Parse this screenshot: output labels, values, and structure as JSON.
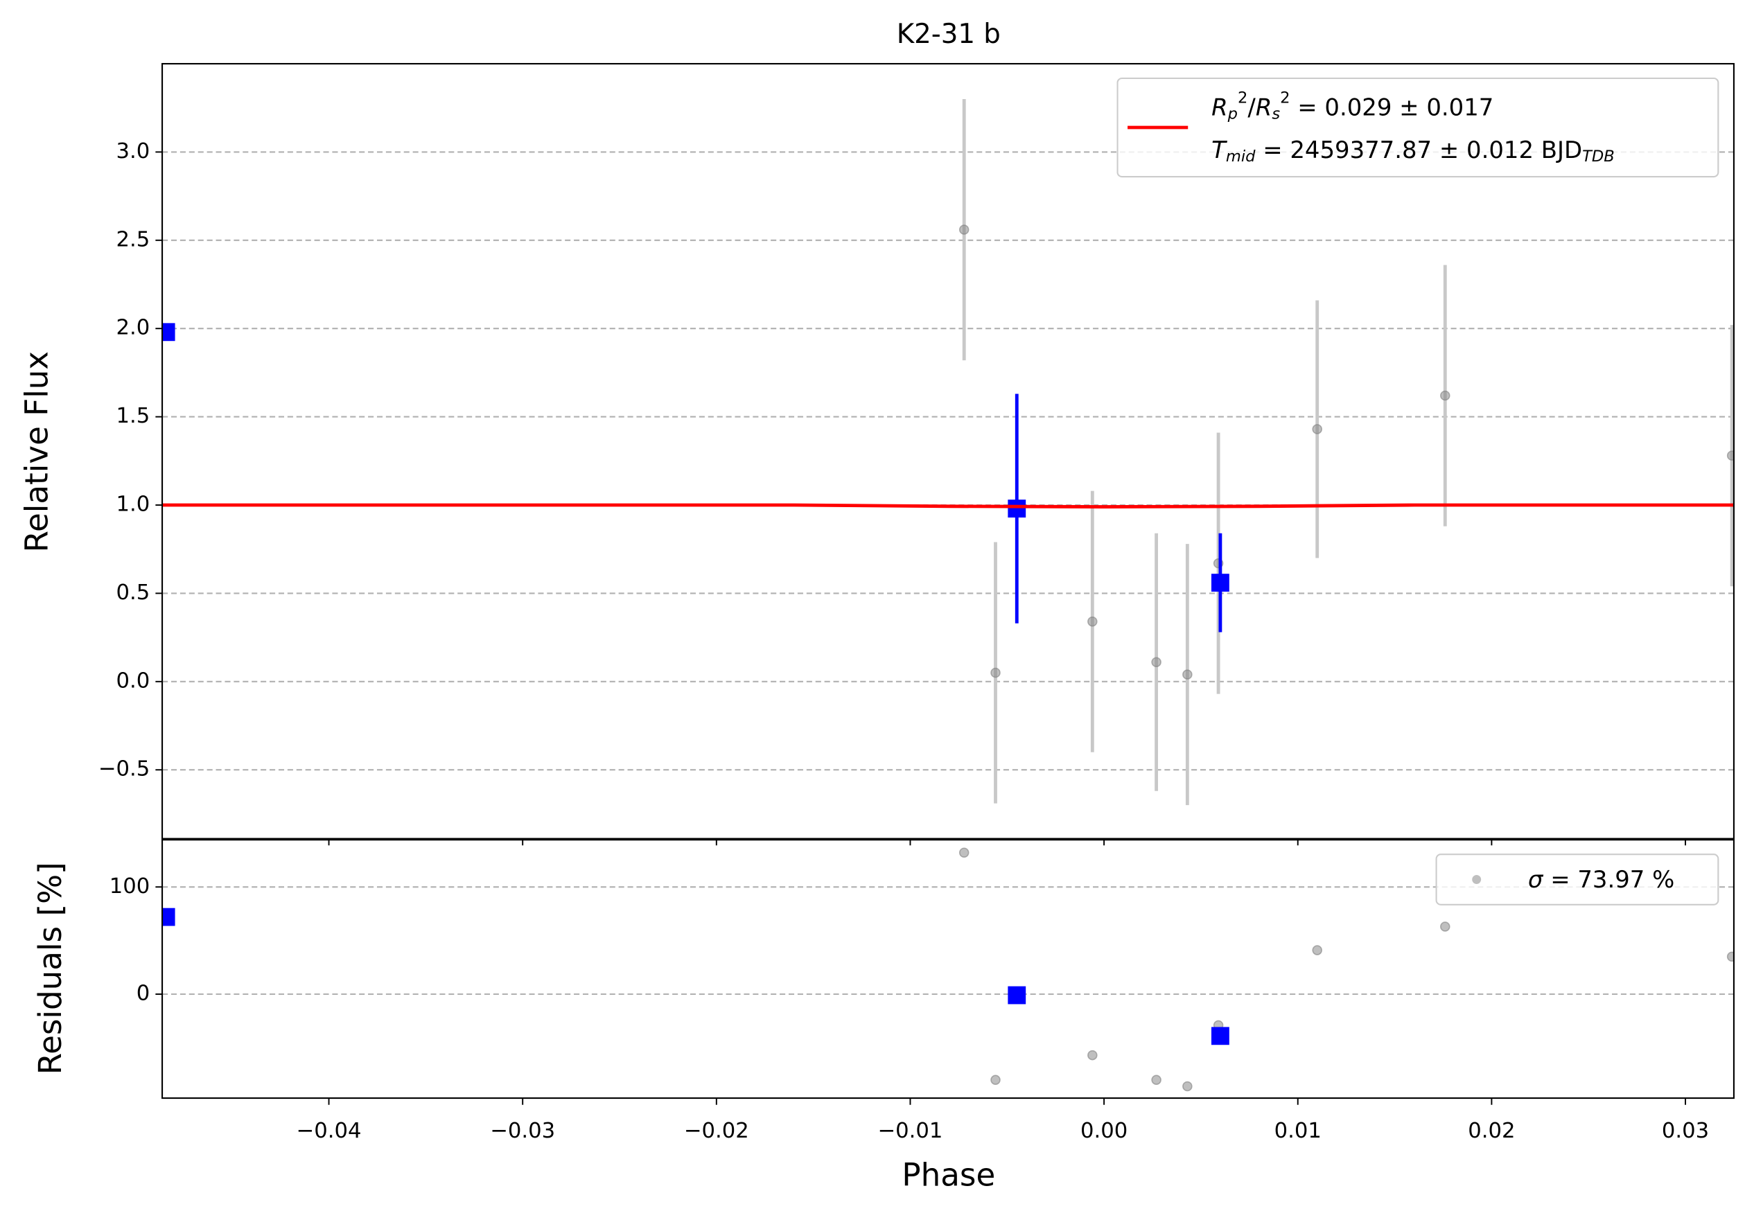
{
  "chart_data": [
    {
      "type": "scatter",
      "title": "K2-31 b",
      "ylabel": "Relative Flux",
      "xlim": [
        -0.0486,
        0.0325
      ],
      "ylim": [
        -0.89,
        3.5
      ],
      "grid": true,
      "legend": "upper right",
      "yticks": [
        {
          "value": -0.5,
          "label": "−0.5"
        },
        {
          "value": 0,
          "label": "0.0"
        },
        0.5,
        {
          "value": 1,
          "label": "1.0"
        },
        1.5,
        {
          "value": 2,
          "label": "2.0"
        },
        2.5,
        {
          "value": 3,
          "label": "3.0"
        }
      ],
      "series": [
        {
          "color": "#808080",
          "marker": "circle",
          "x": [
            -0.00722,
            -0.0056,
            -0.0006,
            0.0027,
            0.0043,
            0.0059,
            0.011,
            0.0176,
            0.0324
          ],
          "values": [
            2.56,
            0.05,
            0.34,
            0.11,
            0.04,
            0.67,
            1.43,
            1.62,
            1.28
          ],
          "errors": [
            0.74,
            0.74,
            0.74,
            0.73,
            0.74,
            0.74,
            0.73,
            0.74,
            0.74
          ]
        },
        {
          "color": "#0000ff",
          "marker": "square",
          "x": [
            -0.0484,
            -0.0045,
            0.006
          ],
          "values": [
            1.98,
            0.98,
            0.56
          ],
          "errors": [
            0.05,
            0.65,
            0.28
          ]
        },
        {
          "color": "#ff0000",
          "marker": "line",
          "x": [
            -0.0486,
            -0.016,
            -0.008,
            0.0,
            0.008,
            0.016,
            0.0325
          ],
          "values": [
            1.0,
            1.0,
            0.993,
            0.99,
            0.993,
            1.0,
            1.0
          ],
          "legend_lines": [
            [
              {
                "text": "R",
                "style": "italic"
              },
              {
                "text": "p",
                "style": "sub"
              },
              {
                "text": "2",
                "style": "sup"
              },
              {
                "text": "/"
              },
              {
                "text": "R",
                "style": "italic"
              },
              {
                "text": "s",
                "style": "sub"
              },
              {
                "text": "2",
                "style": "sup"
              },
              {
                "text": " = 0.029 ± 0.017"
              }
            ],
            [
              {
                "text": "T",
                "style": "italic"
              },
              {
                "text": "mid",
                "style": "sub"
              },
              {
                "text": " = 2459377.87 ± 0.012 BJD"
              },
              {
                "text": "TDB",
                "style": "sub"
              }
            ]
          ]
        }
      ]
    },
    {
      "type": "scatter",
      "ylabel": "Residuals [%]",
      "xlabel": "Phase",
      "xlim": [
        -0.0486,
        0.0325
      ],
      "ylim": [
        -97,
        144
      ],
      "grid": true,
      "legend": "upper right",
      "xticks": [
        {
          "value": -0.04,
          "label": "−0.04"
        },
        {
          "value": -0.03,
          "label": "−0.03"
        },
        {
          "value": -0.02,
          "label": "−0.02"
        },
        {
          "value": -0.01,
          "label": "−0.01"
        },
        {
          "value": 0,
          "label": "0.00"
        },
        0.01,
        0.02,
        0.03
      ],
      "yticks": [
        0,
        100
      ],
      "series": [
        {
          "color": "#808080",
          "marker": "circle",
          "x": [
            -0.00722,
            -0.0056,
            -0.0006,
            0.0027,
            0.0043,
            0.0059,
            0.011,
            0.0176,
            0.0324
          ],
          "values": [
            132,
            -80,
            -57,
            -80,
            -86,
            -29,
            41,
            63,
            35
          ],
          "legend_lines": [
            [
              {
                "text": "σ",
                "style": "italic"
              },
              {
                "text": " = 73.97 %"
              }
            ]
          ]
        },
        {
          "color": "#0000ff",
          "marker": "square",
          "x": [
            -0.0484,
            -0.0045,
            0.006
          ],
          "values": [
            72,
            -1,
            -39
          ]
        }
      ]
    }
  ]
}
